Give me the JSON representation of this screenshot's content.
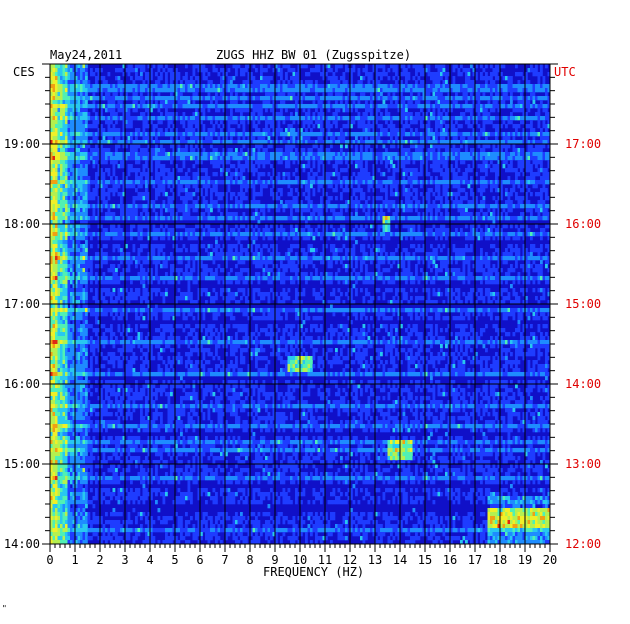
{
  "chart_data": {
    "type": "heatmap",
    "date": "May24,2011",
    "station": "ZUGS HHZ BW 01 (Zugsspitze)",
    "left_tz": "CES",
    "right_tz": "UTC",
    "xlabel": "FREQUENCY (HZ)",
    "xlim": [
      0,
      20
    ],
    "x_ticks": [
      "0",
      "1",
      "2",
      "3",
      "4",
      "5",
      "6",
      "7",
      "8",
      "9",
      "10",
      "11",
      "12",
      "13",
      "14",
      "15",
      "16",
      "17",
      "18",
      "19",
      "20"
    ],
    "ylim_hours_local": [
      14,
      20
    ],
    "y_ticks_left": [
      "19:00",
      "18:00",
      "17:00",
      "16:00",
      "15:00",
      "14:00"
    ],
    "y_ticks_right": [
      "17:00",
      "16:00",
      "15:00",
      "14:00",
      "13:00",
      "12:00"
    ],
    "colormap": [
      "#0a0a8c",
      "#1010c8",
      "#1e3cff",
      "#1e8cff",
      "#28c8f0",
      "#50f0b4",
      "#b4f050",
      "#f0f028",
      "#f0a014",
      "#e02814"
    ],
    "features": [
      {
        "freq_hz": [
          0,
          0.6
        ],
        "level": "high",
        "description_band": "low-frequency energy throughout"
      },
      {
        "freq_hz": [
          9.5,
          10.5
        ],
        "time_local": "16:15",
        "level": "high"
      },
      {
        "freq_hz": [
          13.3,
          13.6
        ],
        "time_local": "18:00",
        "level": "high"
      },
      {
        "freq_hz": [
          17.5,
          20
        ],
        "time_local": "14:20-14:35",
        "level": "high"
      },
      {
        "freq_hz": [
          13.5,
          14.5
        ],
        "time_local": "15:10-15:15",
        "level": "high"
      }
    ]
  },
  "footer_mark": "\""
}
